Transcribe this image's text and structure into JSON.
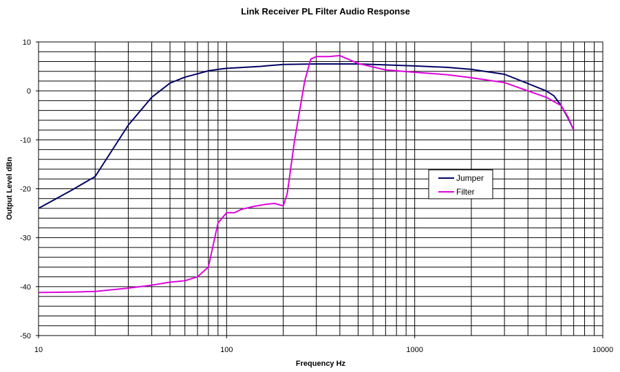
{
  "chart_data": {
    "type": "line",
    "title": "Link Receiver PL Filter Audio Response",
    "xlabel": "Frequency Hz",
    "ylabel": "Output Level dBn",
    "xscale": "log",
    "xlim": [
      10,
      10000
    ],
    "ylim": [
      -50,
      10
    ],
    "x_ticks": [
      "10",
      "100",
      "1000",
      "10000"
    ],
    "y_ticks": [
      "10",
      "0",
      "-10",
      "-20",
      "-30",
      "-40",
      "-50"
    ],
    "y_minor_step": 2,
    "grid": true,
    "legend_position": "right-center",
    "series": [
      {
        "name": "Jumper",
        "color": "#000066",
        "x": [
          10,
          15,
          20,
          30,
          40,
          50,
          60,
          70,
          80,
          90,
          100,
          150,
          200,
          300,
          400,
          500,
          700,
          1000,
          1500,
          2000,
          3000,
          4000,
          5000,
          5500,
          6000,
          6500,
          7000
        ],
        "y": [
          -24,
          -20.3,
          -17.5,
          -7,
          -1.3,
          1.6,
          2.8,
          3.5,
          4.1,
          4.4,
          4.6,
          5.0,
          5.4,
          5.5,
          5.5,
          5.5,
          5.3,
          5.1,
          4.8,
          4.4,
          3.4,
          1.5,
          0,
          -1,
          -3,
          -5.4,
          -8
        ]
      },
      {
        "name": "Filter",
        "color": "#dd00dd",
        "x": [
          10,
          15,
          20,
          30,
          40,
          50,
          60,
          70,
          80,
          90,
          100,
          110,
          120,
          140,
          160,
          180,
          200,
          210,
          230,
          260,
          280,
          300,
          350,
          400,
          500,
          700,
          1000,
          1500,
          2000,
          3000,
          4000,
          5000,
          6000,
          6500,
          7000
        ],
        "y": [
          -41.2,
          -41.1,
          -41.0,
          -40.3,
          -39.7,
          -39.1,
          -38.8,
          -38.0,
          -36.0,
          -27.0,
          -24.9,
          -24.9,
          -24.2,
          -23.6,
          -23.2,
          -23.0,
          -23.5,
          -21.0,
          -10,
          2,
          6.5,
          7.0,
          7.0,
          7.2,
          5.6,
          4.3,
          3.8,
          3.3,
          2.7,
          1.7,
          0,
          -1.3,
          -3,
          -5.2,
          -8
        ]
      }
    ]
  }
}
